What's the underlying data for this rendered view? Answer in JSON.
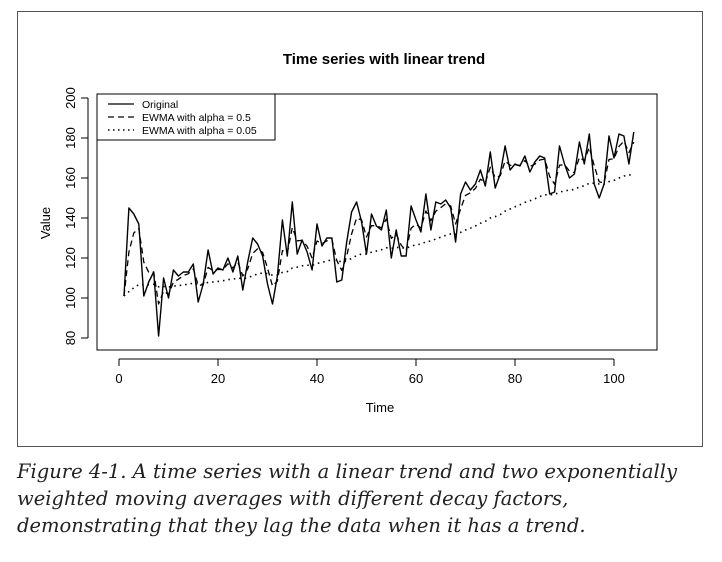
{
  "caption": "Figure 4-1. A time series with a linear trend and two exponentially weighted moving averages with different decay factors, demonstrating that they lag the data when it has a trend.",
  "chart_data": {
    "type": "line",
    "title": "Time series with linear trend",
    "xlabel": "Time",
    "ylabel": "Value",
    "xlim": [
      1,
      104
    ],
    "ylim": [
      80,
      200
    ],
    "xticks": [
      0,
      20,
      40,
      60,
      80,
      100
    ],
    "yticks": [
      80,
      100,
      120,
      140,
      160,
      180,
      200
    ],
    "legend_position": "top-left",
    "x": [
      1,
      2,
      3,
      4,
      5,
      6,
      7,
      8,
      9,
      10,
      11,
      12,
      13,
      14,
      15,
      16,
      17,
      18,
      19,
      20,
      21,
      22,
      23,
      24,
      25,
      26,
      27,
      28,
      29,
      30,
      31,
      32,
      33,
      34,
      35,
      36,
      37,
      38,
      39,
      40,
      41,
      42,
      43,
      44,
      45,
      46,
      47,
      48,
      49,
      50,
      51,
      52,
      53,
      54,
      55,
      56,
      57,
      58,
      59,
      60,
      61,
      62,
      63,
      64,
      65,
      66,
      67,
      68,
      69,
      70,
      71,
      72,
      73,
      74,
      75,
      76,
      77,
      78,
      79,
      80,
      81,
      82,
      83,
      84,
      85,
      86,
      87,
      88,
      89,
      90,
      91,
      92,
      93,
      94,
      95,
      96,
      97,
      98,
      99,
      100,
      101,
      102,
      103,
      104
    ],
    "series": [
      {
        "name": "Original",
        "style": "solid",
        "values": [
          101,
          145,
          142,
          137,
          101,
          108,
          113,
          81,
          110,
          100,
          114,
          111,
          113,
          113,
          117,
          98,
          107,
          124,
          112,
          115,
          114,
          120,
          113,
          121,
          104,
          118,
          130,
          127,
          121,
          107,
          97,
          111,
          139,
          121,
          148,
          122,
          129,
          123,
          114,
          137,
          126,
          130,
          130,
          108,
          109,
          128,
          143,
          148,
          138,
          122,
          142,
          136,
          134,
          144,
          120,
          134,
          121,
          121,
          146,
          139,
          133,
          152,
          134,
          148,
          147,
          149,
          145,
          128,
          152,
          158,
          154,
          157,
          164,
          156,
          173,
          155,
          162,
          176,
          164,
          167,
          166,
          171,
          163,
          168,
          171,
          170,
          152,
          153,
          176,
          167,
          160,
          162,
          178,
          167,
          182,
          157,
          150,
          157,
          181,
          170,
          182,
          181,
          167,
          183
        ]
      },
      {
        "name": "EWMA with alpha = 0.5",
        "style": "dashed",
        "values": [
          101,
          123,
          132.5,
          134.8,
          117.9,
          112.9,
          113,
          97,
          103.5,
          101.7,
          107.9,
          109.4,
          111.2,
          112.1,
          114.6,
          106.3,
          106.6,
          115.3,
          113.7,
          114.3,
          114.2,
          117.1,
          115,
          118,
          111,
          114.5,
          122.3,
          124.6,
          122.8,
          114.9,
          106,
          108.5,
          123.7,
          122.4,
          135.2,
          128.6,
          128.8,
          125.9,
          119.9,
          128.5,
          127.2,
          128.6,
          129.3,
          118.7,
          113.8,
          120.9,
          132,
          140,
          139,
          130.5,
          136.2,
          136.1,
          135.1,
          139.5,
          129.8,
          131.9,
          126.4,
          123.7,
          134.9,
          136.9,
          135,
          143.5,
          138.7,
          143.4,
          145.2,
          147.1,
          146,
          137,
          144.5,
          151.3,
          152.6,
          154.8,
          159.4,
          157.7,
          165.4,
          160.2,
          161.1,
          168.5,
          166.3,
          166.6,
          166.3,
          168.7,
          165.8,
          166.9,
          169,
          169.5,
          160.7,
          156.9,
          166.4,
          166.7,
          163.4,
          162.7,
          170.3,
          168.7,
          175.3,
          166.2,
          158.1,
          157.5,
          169.3,
          169.6,
          175.8,
          178.4,
          172.7,
          177.9
        ]
      },
      {
        "name": "EWMA with alpha = 0.05",
        "style": "dotted",
        "values": [
          101,
          103.2,
          105.1,
          106.7,
          106.5,
          106.6,
          106.9,
          105.6,
          105.8,
          105.5,
          105.9,
          106.2,
          106.5,
          106.9,
          107.4,
          106.9,
          106.9,
          107.8,
          108,
          108.3,
          108.6,
          109.2,
          109.4,
          110,
          109.7,
          110.1,
          111.1,
          112,
          112.5,
          112.2,
          111.4,
          111.4,
          112.8,
          113.2,
          115,
          115.4,
          116.1,
          116.4,
          116.3,
          117.3,
          117.8,
          118.5,
          119.1,
          118.6,
          118.1,
          118.6,
          119.8,
          121.2,
          122,
          122,
          122.9,
          123.5,
          124.1,
          125.1,
          124.8,
          125.3,
          125.1,
          124.9,
          125.9,
          126.6,
          126.9,
          128.1,
          128.5,
          129.5,
          130.4,
          131.3,
          132,
          131.8,
          132.8,
          134,
          134.9,
          136,
          137.4,
          138.3,
          140,
          140.7,
          141.7,
          143.4,
          144.5,
          145.6,
          146.6,
          147.8,
          148.6,
          149.6,
          150.7,
          151.6,
          151.6,
          151.7,
          152.9,
          153.6,
          153.9,
          154.3,
          155.5,
          156.1,
          157.4,
          157.4,
          157,
          157,
          158.2,
          158.8,
          160,
          161,
          161.3,
          162.4
        ]
      }
    ]
  }
}
